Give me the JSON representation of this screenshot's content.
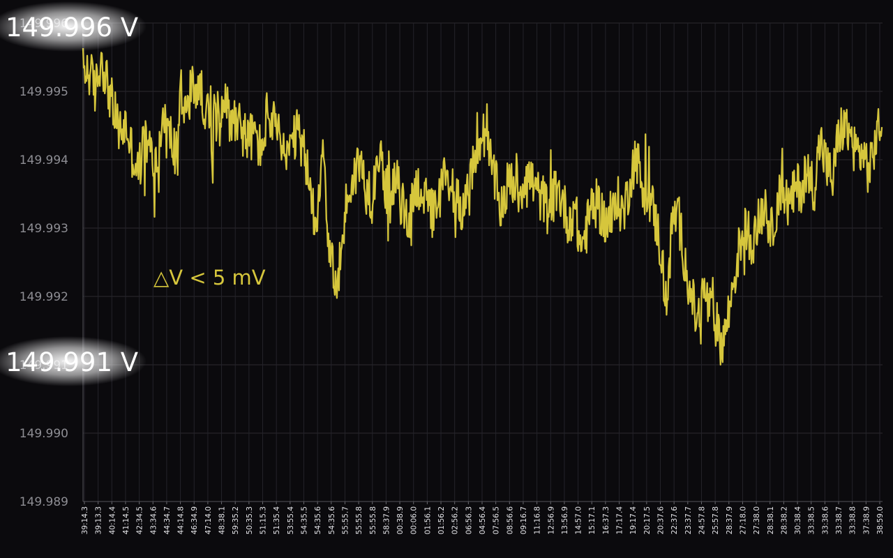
{
  "chart_data": {
    "type": "line",
    "title": "",
    "xlabel": "",
    "ylabel": "",
    "ylim": [
      149.989,
      149.996
    ],
    "y_ticks": [
      "149.989",
      "149.990",
      "149.991",
      "149.992",
      "149.993",
      "149.994",
      "149.995",
      "149.996"
    ],
    "grid": true,
    "legend": "none",
    "x_tick_labels": [
      "39:14.3",
      "39:13.3",
      "40:14.4",
      "41:14.5",
      "42:34.5",
      "43:34.6",
      "44:34.7",
      "44:14.8",
      "46:34.9",
      "47:14.0",
      "48:38.1",
      "59:35.2",
      "50:35.3",
      "51:15.3",
      "51:35.4",
      "53:55.4",
      "54:35.5",
      "54:35.6",
      "54:35.6",
      "55:55.7",
      "55:55.8",
      "55:55.8",
      "58:37.9",
      "00:38.9",
      "00:06.0",
      "01:56.1",
      "01:56.2",
      "02:56.2",
      "06:56.3",
      "04:56.4",
      "07:56.5",
      "08:56.6",
      "09:16.7",
      "11:16.8",
      "12:56.9",
      "13:56.9",
      "14:57.0",
      "15:17.1",
      "16:37.3",
      "17:17.4",
      "19:17.4",
      "20:17.5",
      "20:37.6",
      "22:37.6",
      "23:37.7",
      "24:57.8",
      "25:57.8",
      "28:37.9",
      "27:18.0",
      "27:38.0",
      "28:38.1",
      "28:38.2",
      "30:38.4",
      "33:38.5",
      "33:38.6",
      "33:38.7",
      "33:38.8",
      "37:38.9",
      "38:59.0"
    ],
    "series": [
      {
        "color": "#d6c63c",
        "values": [
          149.9953,
          149.9953,
          149.995,
          149.9955,
          149.9951,
          149.9947,
          149.9944,
          149.9945,
          149.9941,
          149.9938,
          149.9943,
          149.9941,
          149.9939,
          149.9946,
          149.9944,
          149.9941,
          149.9949,
          149.9947,
          149.9951,
          149.995,
          149.9948,
          149.9943,
          149.9947,
          149.995,
          149.9945,
          149.9947,
          149.9944,
          149.9943,
          149.9944,
          149.9941,
          149.9947,
          149.9945,
          149.9943,
          149.994,
          149.9942,
          149.9944,
          149.9941,
          149.9935,
          149.9931,
          149.9943,
          149.9928,
          149.9921,
          149.9926,
          149.9935,
          149.9937,
          149.994,
          149.9936,
          149.9934,
          149.9942,
          149.9937,
          149.9934,
          149.9937,
          149.9933,
          149.9931,
          149.9936,
          149.9936,
          149.9933,
          149.9932,
          149.9934,
          149.9938,
          149.9936,
          149.9934,
          149.9933,
          149.9936,
          149.9941,
          149.9944,
          149.9941,
          149.9937,
          149.9933,
          149.9936,
          149.9937,
          149.9935,
          149.9938,
          149.9937,
          149.9935,
          149.9934,
          149.9932,
          149.9936,
          149.9934,
          149.9931,
          149.9933,
          149.9927,
          149.993,
          149.9934,
          149.9933,
          149.9931,
          149.9931,
          149.9934,
          149.9932,
          149.9937,
          149.9941,
          149.9936,
          149.9935,
          149.9932,
          149.9927,
          149.9919,
          149.9932,
          149.9931,
          149.9925,
          149.992,
          149.9916,
          149.9921,
          149.9918,
          149.9916,
          149.9913,
          149.9917,
          149.9923,
          149.9928,
          149.993,
          149.9928,
          149.9931,
          149.9934,
          149.9929,
          149.9934,
          149.9935,
          149.9933,
          149.9936,
          149.9936,
          149.9938,
          149.9936,
          149.9943,
          149.9939,
          149.9937,
          149.9944,
          149.9945,
          149.9943,
          149.9941,
          149.9941,
          149.9938,
          149.9943,
          149.9946
        ]
      }
    ],
    "annotations": [
      {
        "text": "△V < 5 mV"
      },
      {
        "text": "149.996 V"
      },
      {
        "text": "149.991 V"
      }
    ]
  }
}
